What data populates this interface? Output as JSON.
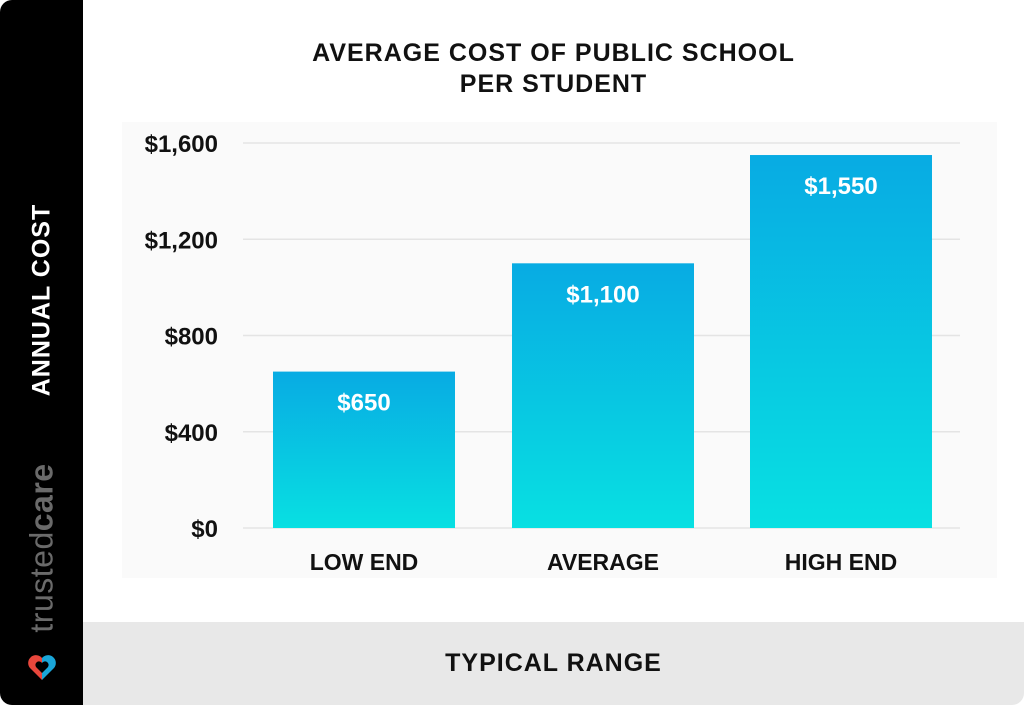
{
  "sidebar": {
    "ylabel": "ANNUAL COST",
    "brand": {
      "part1": "trusted",
      "part2": "care"
    }
  },
  "footer": {
    "xlabel": "TYPICAL RANGE"
  },
  "colors": {
    "bar_top": "#08ABE3",
    "bar_bottom": "#08E0E2",
    "grid": "#e4e4e4",
    "sidebar": "#000000",
    "footer": "#e8e8e8"
  },
  "chart_data": {
    "type": "bar",
    "title": "AVERAGE COST OF PUBLIC SCHOOL PER STUDENT",
    "title_lines": [
      "AVERAGE COST OF PUBLIC SCHOOL",
      "PER STUDENT"
    ],
    "xlabel": "TYPICAL RANGE",
    "ylabel": "ANNUAL COST",
    "categories": [
      "LOW END",
      "AVERAGE",
      "HIGH END"
    ],
    "values": [
      650,
      1100,
      1550
    ],
    "value_labels": [
      "$650",
      "$1,100",
      "$1,550"
    ],
    "ylim": [
      0,
      1600
    ],
    "yticks": [
      0,
      400,
      800,
      1200,
      1600
    ],
    "ytick_labels": [
      "$0",
      "$400",
      "$800",
      "$1,200",
      "$1,600"
    ],
    "grid": true,
    "legend": "none"
  }
}
